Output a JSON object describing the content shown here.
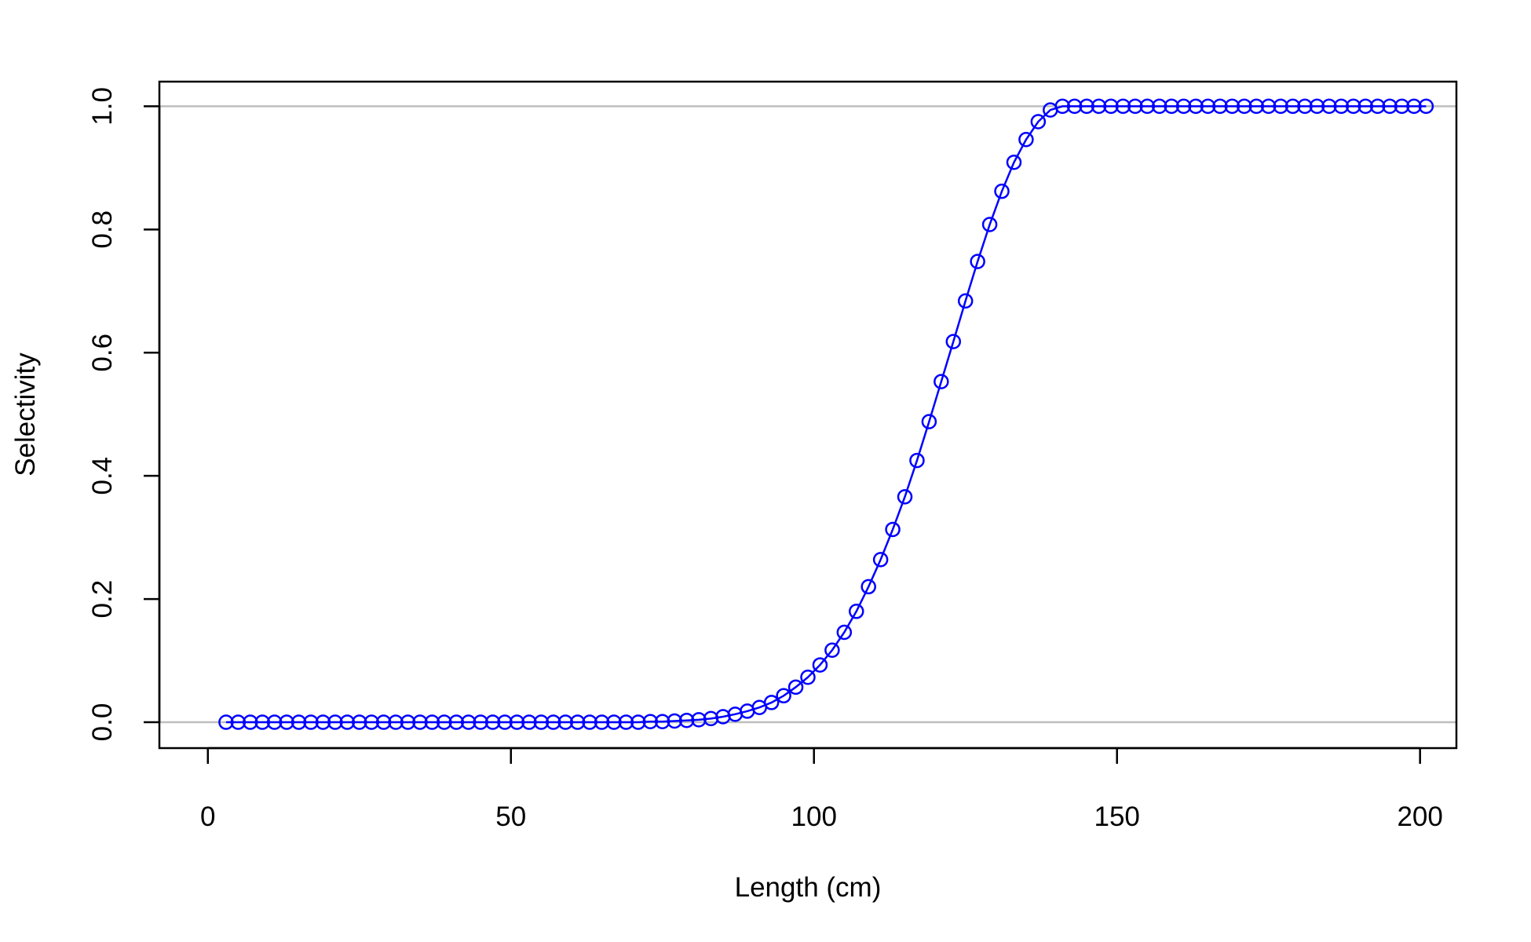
{
  "chart_data": {
    "type": "line",
    "title": "",
    "xlabel": "Length (cm)",
    "ylabel": "Selectivity",
    "xlim": [
      -8,
      206
    ],
    "ylim": [
      -0.042,
      1.04
    ],
    "xticks": [
      0,
      50,
      100,
      150,
      200
    ],
    "yticks": [
      0.0,
      0.2,
      0.4,
      0.6,
      0.8,
      1.0
    ],
    "xtick_labels": [
      "0",
      "50",
      "100",
      "150",
      "200"
    ],
    "ytick_labels": [
      "0.0",
      "0.2",
      "0.4",
      "0.6",
      "0.8",
      "1.0"
    ],
    "reference_lines": [
      0,
      1
    ],
    "grid": false,
    "colors": {
      "series": "#0000ff",
      "reference": "#bebebe",
      "axis": "#000000"
    },
    "series": [
      {
        "x": [
          3,
          5,
          7,
          9,
          11,
          13,
          15,
          17,
          19,
          21,
          23,
          25,
          27,
          29,
          31,
          33,
          35,
          37,
          39,
          41,
          43,
          45,
          47,
          49,
          51,
          53,
          55,
          57,
          59,
          61,
          63,
          65,
          67,
          69,
          71,
          73,
          75,
          77,
          79,
          81,
          83,
          85,
          87,
          89,
          91,
          93,
          95,
          97,
          99,
          101,
          103,
          105,
          107,
          109,
          111,
          113,
          115,
          117,
          119,
          121,
          123,
          125,
          127,
          129,
          131,
          133,
          135,
          137,
          139,
          141,
          143,
          145,
          147,
          149,
          151,
          153,
          155,
          157,
          159,
          161,
          163,
          165,
          167,
          169,
          171,
          173,
          175,
          177,
          179,
          181,
          183,
          185,
          187,
          189,
          191,
          193,
          195,
          197,
          199,
          201
        ],
        "y": [
          0,
          0,
          0,
          0,
          0,
          0,
          0,
          0,
          0,
          0,
          0,
          0,
          0,
          0,
          0,
          0,
          0,
          0,
          0,
          0,
          0,
          0,
          0,
          0,
          0,
          0,
          0,
          0,
          0,
          0,
          0,
          0,
          0,
          0,
          0,
          0.001,
          0.001,
          0.002,
          0.003,
          0.004,
          0.006,
          0.009,
          0.013,
          0.018,
          0.024,
          0.032,
          0.043,
          0.057,
          0.073,
          0.093,
          0.117,
          0.146,
          0.18,
          0.22,
          0.264,
          0.313,
          0.366,
          0.425,
          0.488,
          0.553,
          0.618,
          0.684,
          0.748,
          0.808,
          0.862,
          0.909,
          0.946,
          0.975,
          0.994,
          1,
          1,
          1,
          1,
          1,
          1,
          1,
          1,
          1,
          1,
          1,
          1,
          1,
          1,
          1,
          1,
          1,
          1,
          1,
          1,
          1,
          1,
          1,
          1,
          1,
          1,
          1,
          1,
          1,
          1,
          1
        ]
      }
    ]
  }
}
